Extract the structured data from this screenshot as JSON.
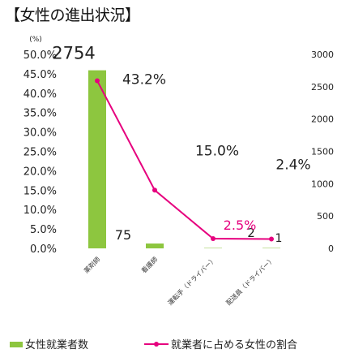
{
  "title": "【女性の進出状況】",
  "chart_data": {
    "type": "bar+line",
    "left_axis_unit": "(%)",
    "left_ticks": [
      "50.0%",
      "45.0%",
      "40.0%",
      "35.0%",
      "30.0%",
      "25.0%",
      "20.0%",
      "15.0%",
      "10.0%",
      "5.0%",
      "0.0%"
    ],
    "right_ticks": [
      "3000",
      "2500",
      "2000",
      "1500",
      "1000",
      "500",
      "0"
    ],
    "ylim_left": [
      0,
      50
    ],
    "ylim_right": [
      0,
      3000
    ],
    "categories": [
      "薬剤師",
      "看護師",
      "運転手（ドライバー）",
      "配送員（ドライバー）"
    ],
    "series": [
      {
        "name": "女性就業者数",
        "kind": "bar",
        "axis": "right",
        "color": "#8dc63f",
        "values": [
          2754,
          75,
          2,
          1
        ],
        "labels": [
          "2754",
          "75",
          "2",
          "1"
        ]
      },
      {
        "name": "就業者に占める女性の割合",
        "kind": "line",
        "axis": "left",
        "color": "#e6007e",
        "values": [
          43.2,
          15.0,
          2.5,
          2.4
        ],
        "labels": [
          "43.2%",
          "15.0%",
          "2.5%",
          "2.4%"
        ]
      }
    ]
  }
}
